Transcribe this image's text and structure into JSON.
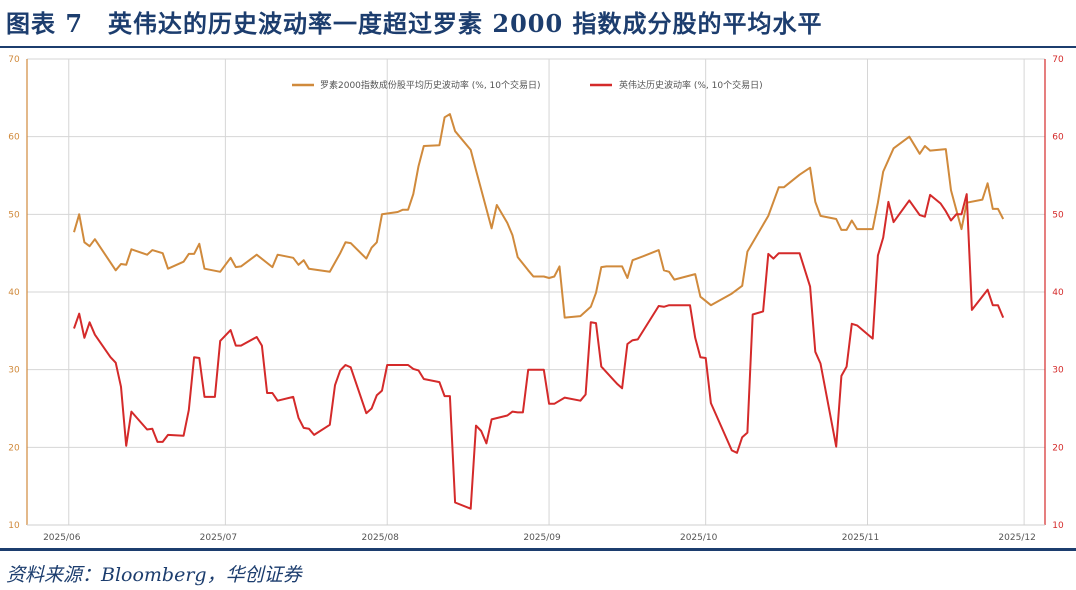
{
  "title": "图表 7　英伟达的历史波动率一度超过罗素 2000 指数成分股的平均水平",
  "source": "资料来源：Bloomberg，华创证券",
  "chart_data": {
    "type": "line",
    "title": "",
    "xlabel": "",
    "ylabel_left": "",
    "ylabel_right": "",
    "xlim": [
      "2025-05-24",
      "2025-12-05"
    ],
    "x_ticks": [
      "2025-06-01",
      "2025-07-01",
      "2025-08-01",
      "2025-09-01",
      "2025-10-01",
      "2025-11-01",
      "2025-12-01"
    ],
    "x_tick_labels": [
      "2025/06",
      "2025/07",
      "2025/08",
      "2025/09",
      "2025/10",
      "2025/11",
      "2025/12"
    ],
    "ylim_left": [
      10,
      70
    ],
    "ylim_right": [
      10,
      70
    ],
    "y_ticks": [
      10,
      20,
      30,
      40,
      50,
      60,
      70
    ],
    "y_tick_labels": [
      "10",
      "20",
      "30",
      "40",
      "50",
      "60",
      "70"
    ],
    "grid": true,
    "legend_position": "top-center",
    "series": [
      {
        "name": "罗素2000指数成份股平均历史波动率 (%, 10个交易日)",
        "axis": "left",
        "color": "#d08a3c",
        "points": [
          [
            "2025-06-02",
            47.7
          ],
          [
            "2025-06-03",
            50
          ],
          [
            "2025-06-04",
            46.4
          ],
          [
            "2025-06-05",
            45.9
          ],
          [
            "2025-06-06",
            46.8
          ],
          [
            "2025-06-10",
            42.8
          ],
          [
            "2025-06-11",
            43.6
          ],
          [
            "2025-06-12",
            43.5
          ],
          [
            "2025-06-13",
            45.5
          ],
          [
            "2025-06-16",
            44.8
          ],
          [
            "2025-06-17",
            45.4
          ],
          [
            "2025-06-19",
            45
          ],
          [
            "2025-06-20",
            43
          ],
          [
            "2025-06-23",
            43.9
          ],
          [
            "2025-06-24",
            44.9
          ],
          [
            "2025-06-25",
            44.9
          ],
          [
            "2025-06-26",
            46.2
          ],
          [
            "2025-06-27",
            43
          ],
          [
            "2025-06-30",
            42.6
          ],
          [
            "2025-07-02",
            44.4
          ],
          [
            "2025-07-03",
            43.2
          ],
          [
            "2025-07-04",
            43.3
          ],
          [
            "2025-07-07",
            44.8
          ],
          [
            "2025-07-10",
            43.2
          ],
          [
            "2025-07-11",
            44.8
          ],
          [
            "2025-07-14",
            44.4
          ],
          [
            "2025-07-15",
            43.5
          ],
          [
            "2025-07-16",
            44.1
          ],
          [
            "2025-07-17",
            43
          ],
          [
            "2025-07-21",
            42.6
          ],
          [
            "2025-07-23",
            45
          ],
          [
            "2025-07-24",
            46.4
          ],
          [
            "2025-07-25",
            46.3
          ],
          [
            "2025-07-28",
            44.3
          ],
          [
            "2025-07-29",
            45.7
          ],
          [
            "2025-07-30",
            46.4
          ],
          [
            "2025-07-31",
            50
          ],
          [
            "2025-08-03",
            50.3
          ],
          [
            "2025-08-04",
            50.6
          ],
          [
            "2025-08-05",
            50.6
          ],
          [
            "2025-08-06",
            52.6
          ],
          [
            "2025-08-07",
            56.2
          ],
          [
            "2025-08-08",
            58.8
          ],
          [
            "2025-08-11",
            58.9
          ],
          [
            "2025-08-12",
            62.5
          ],
          [
            "2025-08-13",
            62.9
          ],
          [
            "2025-08-14",
            60.7
          ],
          [
            "2025-08-17",
            58.3
          ],
          [
            "2025-08-18",
            55.7
          ],
          [
            "2025-08-21",
            48.2
          ],
          [
            "2025-08-22",
            51.2
          ],
          [
            "2025-08-24",
            48.9
          ],
          [
            "2025-08-25",
            47.3
          ],
          [
            "2025-08-26",
            44.5
          ],
          [
            "2025-08-28",
            42.8
          ],
          [
            "2025-08-29",
            42
          ],
          [
            "2025-08-31",
            42
          ],
          [
            "2025-09-01",
            41.8
          ],
          [
            "2025-09-02",
            42
          ],
          [
            "2025-09-03",
            43.3
          ],
          [
            "2025-09-04",
            36.7
          ],
          [
            "2025-09-07",
            36.9
          ],
          [
            "2025-09-09",
            38.1
          ],
          [
            "2025-09-10",
            39.9
          ],
          [
            "2025-09-11",
            43.2
          ],
          [
            "2025-09-12",
            43.3
          ],
          [
            "2025-09-15",
            43.3
          ],
          [
            "2025-09-16",
            41.8
          ],
          [
            "2025-09-17",
            44.1
          ],
          [
            "2025-09-19",
            44.6
          ],
          [
            "2025-09-22",
            45.4
          ],
          [
            "2025-09-23",
            42.8
          ],
          [
            "2025-09-24",
            42.6
          ],
          [
            "2025-09-25",
            41.6
          ],
          [
            "2025-09-29",
            42.3
          ],
          [
            "2025-09-30",
            39.4
          ],
          [
            "2025-10-02",
            38.3
          ],
          [
            "2025-10-06",
            39.8
          ],
          [
            "2025-10-08",
            40.8
          ],
          [
            "2025-10-09",
            45.2
          ],
          [
            "2025-10-13",
            49.8
          ],
          [
            "2025-10-15",
            53.5
          ],
          [
            "2025-10-16",
            53.5
          ],
          [
            "2025-10-19",
            55.1
          ],
          [
            "2025-10-21",
            56
          ],
          [
            "2025-10-22",
            51.6
          ],
          [
            "2025-10-23",
            49.8
          ],
          [
            "2025-10-26",
            49.4
          ],
          [
            "2025-10-27",
            48
          ],
          [
            "2025-10-28",
            48
          ],
          [
            "2025-10-29",
            49.2
          ],
          [
            "2025-10-30",
            48.1
          ],
          [
            "2025-11-02",
            48.1
          ],
          [
            "2025-11-03",
            51.5
          ],
          [
            "2025-11-04",
            55.5
          ],
          [
            "2025-11-06",
            58.5
          ],
          [
            "2025-11-09",
            60
          ],
          [
            "2025-11-11",
            57.8
          ],
          [
            "2025-11-12",
            58.8
          ],
          [
            "2025-11-13",
            58.2
          ],
          [
            "2025-11-16",
            58.4
          ],
          [
            "2025-11-17",
            53.1
          ],
          [
            "2025-11-19",
            48.1
          ],
          [
            "2025-11-20",
            51.5
          ],
          [
            "2025-11-23",
            51.9
          ],
          [
            "2025-11-24",
            54
          ],
          [
            "2025-11-25",
            50.7
          ],
          [
            "2025-11-26",
            50.7
          ],
          [
            "2025-11-27",
            49.4
          ]
        ]
      },
      {
        "name": "英伟达历史波动率 (%, 10个交易日)",
        "axis": "right",
        "color": "#d42a2a",
        "points": [
          [
            "2025-06-02",
            35.3
          ],
          [
            "2025-06-03",
            37.2
          ],
          [
            "2025-06-04",
            34.1
          ],
          [
            "2025-06-05",
            36.1
          ],
          [
            "2025-06-06",
            34.5
          ],
          [
            "2025-06-09",
            31.6
          ],
          [
            "2025-06-10",
            30.9
          ],
          [
            "2025-06-11",
            27.8
          ],
          [
            "2025-06-12",
            20.2
          ],
          [
            "2025-06-13",
            24.6
          ],
          [
            "2025-06-16",
            22.3
          ],
          [
            "2025-06-17",
            22.4
          ],
          [
            "2025-06-18",
            20.7
          ],
          [
            "2025-06-19",
            20.7
          ],
          [
            "2025-06-20",
            21.6
          ],
          [
            "2025-06-23",
            21.5
          ],
          [
            "2025-06-24",
            24.8
          ],
          [
            "2025-06-25",
            31.6
          ],
          [
            "2025-06-26",
            31.5
          ],
          [
            "2025-06-27",
            26.5
          ],
          [
            "2025-06-29",
            26.5
          ],
          [
            "2025-06-30",
            33.7
          ],
          [
            "2025-07-02",
            35.1
          ],
          [
            "2025-07-03",
            33.1
          ],
          [
            "2025-07-04",
            33.1
          ],
          [
            "2025-07-07",
            34.2
          ],
          [
            "2025-07-08",
            33.1
          ],
          [
            "2025-07-09",
            27
          ],
          [
            "2025-07-10",
            27
          ],
          [
            "2025-07-11",
            26
          ],
          [
            "2025-07-14",
            26.5
          ],
          [
            "2025-07-15",
            23.8
          ],
          [
            "2025-07-16",
            22.5
          ],
          [
            "2025-07-17",
            22.4
          ],
          [
            "2025-07-18",
            21.6
          ],
          [
            "2025-07-21",
            22.9
          ],
          [
            "2025-07-22",
            28
          ],
          [
            "2025-07-23",
            29.9
          ],
          [
            "2025-07-24",
            30.6
          ],
          [
            "2025-07-25",
            30.3
          ],
          [
            "2025-07-28",
            24.4
          ],
          [
            "2025-07-29",
            25
          ],
          [
            "2025-07-30",
            26.7
          ],
          [
            "2025-07-31",
            27.3
          ],
          [
            "2025-08-01",
            30.6
          ],
          [
            "2025-08-05",
            30.6
          ],
          [
            "2025-08-06",
            30.1
          ],
          [
            "2025-08-07",
            29.9
          ],
          [
            "2025-08-08",
            28.8
          ],
          [
            "2025-08-11",
            28.4
          ],
          [
            "2025-08-12",
            26.6
          ],
          [
            "2025-08-13",
            26.6
          ],
          [
            "2025-08-14",
            12.9
          ],
          [
            "2025-08-17",
            12.1
          ],
          [
            "2025-08-18",
            22.8
          ],
          [
            "2025-08-19",
            22.1
          ],
          [
            "2025-08-20",
            20.5
          ],
          [
            "2025-08-21",
            23.6
          ],
          [
            "2025-08-24",
            24.1
          ],
          [
            "2025-08-25",
            24.6
          ],
          [
            "2025-08-26",
            24.5
          ],
          [
            "2025-08-27",
            24.5
          ],
          [
            "2025-08-28",
            30
          ],
          [
            "2025-08-31",
            30
          ],
          [
            "2025-09-01",
            25.6
          ],
          [
            "2025-09-02",
            25.6
          ],
          [
            "2025-09-04",
            26.4
          ],
          [
            "2025-09-07",
            26
          ],
          [
            "2025-09-08",
            26.8
          ],
          [
            "2025-09-09",
            36.1
          ],
          [
            "2025-09-10",
            36
          ],
          [
            "2025-09-11",
            30.4
          ],
          [
            "2025-09-14",
            28.2
          ],
          [
            "2025-09-15",
            27.6
          ],
          [
            "2025-09-16",
            33.3
          ],
          [
            "2025-09-17",
            33.8
          ],
          [
            "2025-09-18",
            33.9
          ],
          [
            "2025-09-22",
            38.2
          ],
          [
            "2025-09-23",
            38.1
          ],
          [
            "2025-09-24",
            38.3
          ],
          [
            "2025-09-28",
            38.3
          ],
          [
            "2025-09-29",
            34.1
          ],
          [
            "2025-09-30",
            31.6
          ],
          [
            "2025-10-01",
            31.5
          ],
          [
            "2025-10-02",
            25.7
          ],
          [
            "2025-10-06",
            19.6
          ],
          [
            "2025-10-07",
            19.3
          ],
          [
            "2025-10-08",
            21.3
          ],
          [
            "2025-10-09",
            21.9
          ],
          [
            "2025-10-10",
            37.1
          ],
          [
            "2025-10-12",
            37.5
          ],
          [
            "2025-10-13",
            44.9
          ],
          [
            "2025-10-14",
            44.3
          ],
          [
            "2025-10-15",
            45
          ],
          [
            "2025-10-19",
            45
          ],
          [
            "2025-10-21",
            40.7
          ],
          [
            "2025-10-22",
            32.3
          ],
          [
            "2025-10-23",
            30.8
          ],
          [
            "2025-10-26",
            20.1
          ],
          [
            "2025-10-27",
            29.2
          ],
          [
            "2025-10-28",
            30.4
          ],
          [
            "2025-10-29",
            35.9
          ],
          [
            "2025-10-30",
            35.7
          ],
          [
            "2025-11-02",
            34
          ],
          [
            "2025-11-03",
            44.7
          ],
          [
            "2025-11-04",
            47
          ],
          [
            "2025-11-05",
            51.6
          ],
          [
            "2025-11-06",
            49
          ],
          [
            "2025-11-09",
            51.8
          ],
          [
            "2025-11-11",
            49.9
          ],
          [
            "2025-11-12",
            49.7
          ],
          [
            "2025-11-13",
            52.5
          ],
          [
            "2025-11-15",
            51.4
          ],
          [
            "2025-11-16",
            50.4
          ],
          [
            "2025-11-17",
            49.2
          ],
          [
            "2025-11-18",
            50
          ],
          [
            "2025-11-19",
            50
          ],
          [
            "2025-11-20",
            52.6
          ],
          [
            "2025-11-21",
            37.7
          ],
          [
            "2025-11-24",
            40.3
          ],
          [
            "2025-11-25",
            38.3
          ],
          [
            "2025-11-26",
            38.3
          ],
          [
            "2025-11-27",
            36.7
          ]
        ]
      }
    ]
  }
}
